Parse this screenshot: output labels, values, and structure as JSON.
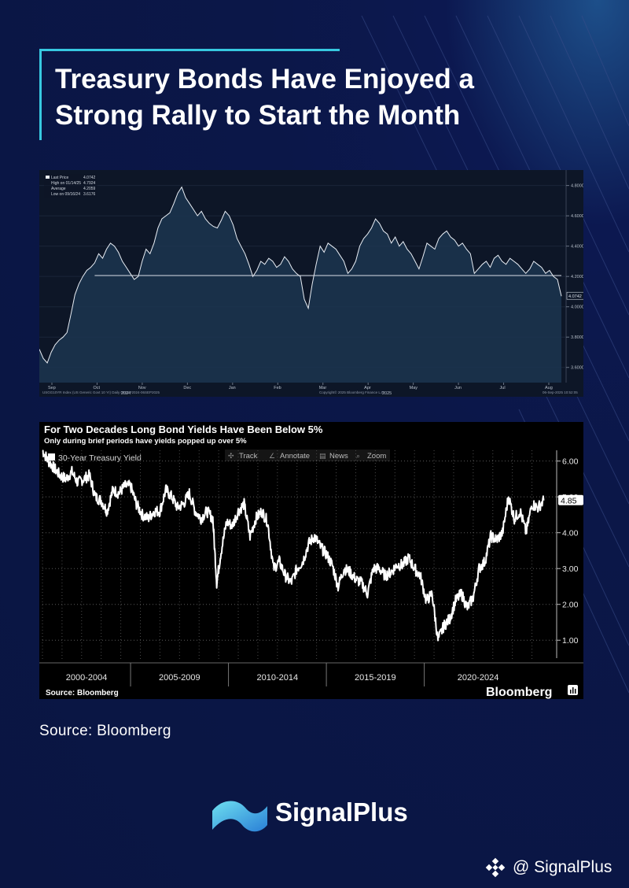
{
  "title": {
    "line1": "Treasury Bonds Have Enjoyed a",
    "line2": "Strong Rally to Start the Month"
  },
  "source_note": "Source: Bloomberg",
  "brand": {
    "name": "SignalPlus",
    "handle": "@ SignalPlus"
  },
  "chart_data": [
    {
      "type": "area",
      "legend": [
        {
          "label": "Last Price",
          "value": "4.0742"
        },
        {
          "label": "High on 01/14/25",
          "value": "4.7924"
        },
        {
          "label": "Average",
          "value": "4.2059"
        },
        {
          "label": "Low on 09/16/24",
          "value": "3.6176"
        }
      ],
      "ylim": [
        3.5,
        4.85
      ],
      "yticks": [
        3.6,
        3.8,
        4.0,
        4.2,
        4.4,
        4.6,
        4.8
      ],
      "ytick_labels": [
        "3.6000",
        "3.8000",
        "4.0000",
        "4.2000",
        "4.4000",
        "4.6000",
        "4.8000"
      ],
      "last_label": "4.0742",
      "average": 4.2059,
      "xtick_labels": [
        "Sep",
        "Oct",
        "Nov",
        "Dec",
        "Jan",
        "Feb",
        "Mar",
        "Apr",
        "May",
        "Jun",
        "Jul",
        "Aug"
      ],
      "year_labels": [
        "2024",
        "2025"
      ],
      "footer_left": "USGG10YR Index (US Generic Govt 10 Yr)  Daily 06SEP2024-06SEP2025",
      "footer_center": "Copyright© 2025 Bloomberg Finance L.P.",
      "footer_right": "06-Sep-2025 10:52:05",
      "x": [
        0,
        2,
        4,
        6,
        8,
        10,
        12,
        14,
        16,
        18,
        20,
        22,
        24,
        26,
        28,
        30,
        32,
        34,
        36,
        38,
        40,
        42,
        44,
        46,
        48,
        50,
        52,
        54,
        56,
        58,
        60,
        62,
        64,
        66,
        68,
        70,
        72,
        74,
        76,
        78,
        80,
        82,
        84,
        86,
        88,
        90,
        92,
        94,
        96,
        98,
        100,
        102,
        104,
        106,
        108,
        110,
        112,
        114,
        116,
        118,
        120,
        122,
        124,
        126,
        128,
        130,
        132,
        134,
        136,
        138,
        140,
        142,
        144,
        146,
        148,
        150,
        152,
        154,
        156,
        158,
        160,
        162,
        164,
        166,
        168,
        170,
        172,
        174,
        176,
        178,
        180,
        182,
        184,
        186,
        188,
        190,
        192,
        194,
        196,
        198,
        200,
        202,
        204,
        206,
        208,
        210,
        212,
        214,
        216,
        218,
        220,
        222,
        224,
        226,
        228,
        230,
        232,
        234,
        236,
        238,
        240,
        242,
        244,
        246,
        248,
        250,
        252,
        254,
        256,
        258,
        260,
        262,
        264
      ],
      "values": [
        3.72,
        3.66,
        3.63,
        3.7,
        3.75,
        3.78,
        3.8,
        3.83,
        3.95,
        4.08,
        4.15,
        4.2,
        4.24,
        4.26,
        4.29,
        4.35,
        4.32,
        4.38,
        4.42,
        4.4,
        4.36,
        4.3,
        4.26,
        4.22,
        4.18,
        4.2,
        4.3,
        4.38,
        4.35,
        4.42,
        4.52,
        4.58,
        4.6,
        4.62,
        4.68,
        4.75,
        4.79,
        4.72,
        4.68,
        4.64,
        4.6,
        4.63,
        4.58,
        4.55,
        4.53,
        4.52,
        4.57,
        4.63,
        4.6,
        4.54,
        4.45,
        4.4,
        4.35,
        4.28,
        4.2,
        4.24,
        4.3,
        4.28,
        4.32,
        4.3,
        4.26,
        4.28,
        4.33,
        4.3,
        4.25,
        4.22,
        4.2,
        4.05,
        3.99,
        4.15,
        4.28,
        4.4,
        4.36,
        4.42,
        4.4,
        4.38,
        4.34,
        4.3,
        4.22,
        4.25,
        4.3,
        4.4,
        4.45,
        4.48,
        4.52,
        4.58,
        4.55,
        4.5,
        4.48,
        4.42,
        4.46,
        4.4,
        4.43,
        4.38,
        4.35,
        4.3,
        4.25,
        4.33,
        4.42,
        4.4,
        4.38,
        4.45,
        4.48,
        4.5,
        4.46,
        4.44,
        4.4,
        4.42,
        4.38,
        4.35,
        4.22,
        4.25,
        4.28,
        4.3,
        4.26,
        4.32,
        4.34,
        4.3,
        4.28,
        4.32,
        4.3,
        4.28,
        4.25,
        4.22,
        4.25,
        4.3,
        4.28,
        4.26,
        4.22,
        4.24,
        4.2,
        4.18,
        4.07
      ]
    },
    {
      "type": "line",
      "title": "For Two Decades Long Bond Yields Have Been Below 5%",
      "subtitle": "Only during brief periods have yields popped up over 5%",
      "series": [
        {
          "name": "30-Year Treasury Yield"
        }
      ],
      "toolbar": [
        "Track",
        "Annotate",
        "News",
        "Zoom"
      ],
      "ylim": [
        0.5,
        6.3
      ],
      "yticks": [
        1.0,
        2.0,
        3.0,
        4.0,
        5.0,
        6.0
      ],
      "ytick_labels": [
        "1.00",
        "2.00",
        "3.00",
        "4.00",
        "5.00",
        "6.00"
      ],
      "last_label": "4.85",
      "x_range": [
        2000.0,
        2025.7
      ],
      "period_labels": [
        "2000-2004",
        "2005-2009",
        "2010-2014",
        "2015-2019",
        "2020-2024"
      ],
      "period_boundaries": [
        2004.5,
        2009.5,
        2014.5,
        2019.5
      ],
      "source": "Source: Bloomberg",
      "brand": "Bloomberg",
      "x": [
        2000.0,
        2000.3,
        2000.6,
        2000.9,
        2001.2,
        2001.5,
        2001.8,
        2002.1,
        2002.4,
        2002.7,
        2003.0,
        2003.3,
        2003.6,
        2003.9,
        2004.2,
        2004.5,
        2004.8,
        2005.1,
        2005.4,
        2005.7,
        2006.0,
        2006.3,
        2006.6,
        2006.9,
        2007.2,
        2007.5,
        2007.8,
        2008.1,
        2008.4,
        2008.7,
        2008.9,
        2009.1,
        2009.4,
        2009.7,
        2010.0,
        2010.3,
        2010.6,
        2010.9,
        2011.2,
        2011.5,
        2011.8,
        2012.1,
        2012.4,
        2012.7,
        2013.0,
        2013.3,
        2013.6,
        2013.9,
        2014.2,
        2014.5,
        2014.8,
        2015.1,
        2015.4,
        2015.7,
        2016.0,
        2016.3,
        2016.6,
        2016.9,
        2017.2,
        2017.5,
        2017.8,
        2018.1,
        2018.4,
        2018.7,
        2019.0,
        2019.3,
        2019.6,
        2019.9,
        2020.2,
        2020.5,
        2020.8,
        2021.1,
        2021.4,
        2021.7,
        2022.0,
        2022.3,
        2022.6,
        2022.9,
        2023.2,
        2023.5,
        2023.8,
        2024.1,
        2024.4,
        2024.7,
        2025.0,
        2025.3,
        2025.6
      ],
      "values": [
        6.3,
        6.0,
        5.8,
        5.6,
        5.5,
        5.7,
        5.4,
        5.5,
        5.6,
        5.0,
        4.9,
        4.6,
        5.2,
        5.1,
        5.3,
        5.3,
        4.8,
        4.5,
        4.4,
        4.6,
        4.6,
        5.2,
        5.0,
        4.7,
        4.8,
        5.1,
        4.6,
        4.4,
        4.6,
        4.4,
        2.6,
        3.4,
        4.3,
        4.2,
        4.6,
        4.8,
        3.9,
        4.4,
        4.6,
        4.3,
        3.0,
        3.2,
        2.8,
        2.6,
        3.0,
        3.2,
        3.7,
        3.9,
        3.6,
        3.4,
        3.1,
        2.5,
        3.0,
        2.9,
        2.7,
        2.6,
        2.3,
        3.0,
        3.0,
        2.8,
        2.9,
        3.1,
        3.1,
        3.3,
        3.0,
        2.8,
        2.1,
        2.3,
        1.0,
        1.4,
        1.6,
        2.1,
        2.3,
        1.9,
        2.2,
        3.0,
        3.2,
        3.9,
        3.8,
        4.0,
        5.0,
        4.4,
        4.6,
        4.0,
        4.8,
        4.7,
        4.9
      ]
    }
  ]
}
